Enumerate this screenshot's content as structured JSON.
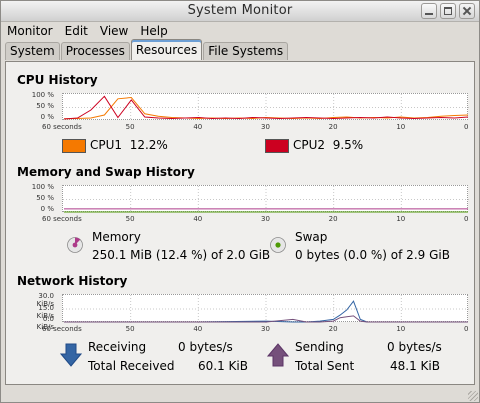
{
  "window": {
    "title": "System Monitor"
  },
  "menu": [
    "Monitor",
    "Edit",
    "View",
    "Help"
  ],
  "tabs": [
    "System",
    "Processes",
    "Resources",
    "File Systems"
  ],
  "active_tab": "Resources",
  "cpu": {
    "title": "CPU History",
    "y_ticks": [
      "100 %",
      "50 %",
      "0 %"
    ],
    "x_ticks": [
      "60 seconds",
      "50",
      "40",
      "30",
      "20",
      "10",
      "0"
    ],
    "series": [
      {
        "name": "CPU1",
        "value": "12.2%",
        "color": "#f57900"
      },
      {
        "name": "CPU2",
        "value": "9.5%",
        "color": "#cc0020"
      }
    ]
  },
  "memory": {
    "title": "Memory and Swap History",
    "y_ticks": [
      "100 %",
      "50 %",
      "0 %"
    ],
    "x_ticks": [
      "60 seconds",
      "50",
      "40",
      "30",
      "20",
      "10",
      "0"
    ],
    "memory_label": "Memory",
    "memory_value": "250.1 MiB (12.4 %) of 2.0 GiB",
    "memory_color": "#ad3b8a",
    "memory_fraction": 0.124,
    "swap_label": "Swap",
    "swap_value": "0 bytes (0.0 %) of 2.9 GiB",
    "swap_color": "#4e9a06"
  },
  "network": {
    "title": "Network History",
    "y_ticks": [
      "30.0 KiB/s",
      "15.0 KiB/s",
      "0.0 KiB/s"
    ],
    "x_ticks": [
      "60 seconds",
      "50",
      "40",
      "30",
      "20",
      "10",
      "0"
    ],
    "receiving_label": "Receiving",
    "receiving_rate": "0 bytes/s",
    "total_received_label": "Total Received",
    "total_received": "60.1 KiB",
    "receiving_color": "#3465a4",
    "sending_label": "Sending",
    "sending_rate": "0 bytes/s",
    "total_sent_label": "Total Sent",
    "total_sent": "48.1 KiB",
    "sending_color": "#75507b"
  },
  "chart_data": [
    {
      "type": "line",
      "title": "CPU History",
      "x": [
        60,
        58,
        56,
        54,
        52,
        50,
        48,
        46,
        44,
        42,
        40,
        38,
        36,
        34,
        32,
        30,
        28,
        26,
        24,
        22,
        20,
        18,
        16,
        14,
        12,
        10,
        8,
        6,
        4,
        2,
        0
      ],
      "ylim": [
        0,
        100
      ],
      "series": [
        {
          "name": "CPU1",
          "values": [
            5,
            6,
            8,
            20,
            85,
            90,
            25,
            15,
            10,
            8,
            6,
            8,
            6,
            8,
            6,
            10,
            8,
            6,
            8,
            6,
            10,
            12,
            8,
            10,
            8,
            12,
            8,
            10,
            15,
            18,
            20
          ]
        },
        {
          "name": "CPU2",
          "values": [
            4,
            8,
            40,
            95,
            10,
            80,
            12,
            8,
            6,
            8,
            10,
            6,
            8,
            6,
            10,
            8,
            6,
            8,
            10,
            8,
            6,
            8,
            10,
            8,
            12,
            8,
            6,
            8,
            10,
            8,
            12
          ]
        }
      ]
    },
    {
      "type": "line",
      "title": "Memory and Swap History",
      "x": [
        60,
        0
      ],
      "ylim": [
        0,
        100
      ],
      "series": [
        {
          "name": "Memory",
          "values": [
            12.4,
            12.4
          ]
        },
        {
          "name": "Swap",
          "values": [
            0,
            0
          ]
        }
      ]
    },
    {
      "type": "line",
      "title": "Network History",
      "x": [
        60,
        50,
        40,
        30,
        26,
        24,
        22,
        20,
        19,
        18,
        17,
        16,
        15,
        10,
        0
      ],
      "ylim": [
        0,
        30
      ],
      "series": [
        {
          "name": "Receiving",
          "values": [
            0,
            0,
            0,
            1,
            0,
            0,
            1,
            3,
            8,
            14,
            24,
            3,
            0,
            0,
            0
          ]
        },
        {
          "name": "Sending",
          "values": [
            0,
            0,
            0,
            0,
            3,
            0,
            0,
            1,
            5,
            6,
            7,
            1,
            0,
            0,
            0
          ]
        }
      ]
    }
  ]
}
